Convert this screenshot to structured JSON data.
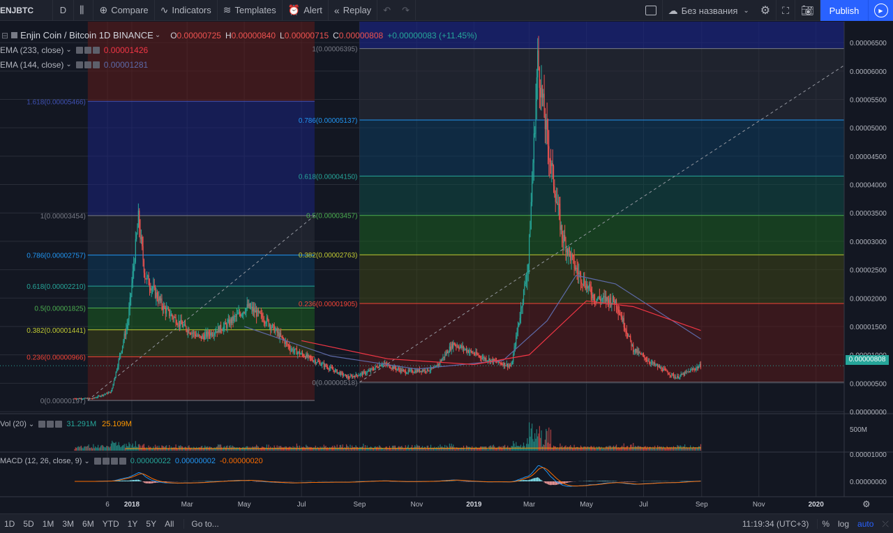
{
  "toolbar": {
    "symbol": "ENJBTC",
    "interval": "D",
    "compare": "Compare",
    "indicators": "Indicators",
    "templates": "Templates",
    "alert": "Alert",
    "replay": "Replay",
    "layout_name": "Без названия",
    "publish": "Publish"
  },
  "legend": {
    "title": "Enjin Coin / Bitcoin  1D  BINANCE",
    "o_label": "O",
    "o_value": "0.00000725",
    "h_label": "H",
    "h_value": "0.00000840",
    "l_label": "L",
    "l_value": "0.00000715",
    "c_label": "C",
    "c_value": "0.00000808",
    "change": "+0.00000083 (+11.45%)",
    "ema233_label": "EMA (233, close)",
    "ema233_value": "0.00001426",
    "ema144_label": "EMA (144, close)",
    "ema144_value": "0.00001281",
    "vol_label": "Vol (20)",
    "vol_value1": "31.291M",
    "vol_value2": "25.109M",
    "macd_label": "MACD (12, 26, close, 9)",
    "macd_value1": "0.00000022",
    "macd_value2": "0.00000002",
    "macd_value3": "-0.00000020"
  },
  "price_axis": {
    "ticks": [
      "0.00006500",
      "0.00006000",
      "0.00005500",
      "0.00005000",
      "0.00004500",
      "0.00004000",
      "0.00003500",
      "0.00003000",
      "0.00002500",
      "0.00002000",
      "0.00001500",
      "0.00001000",
      "0.00000500",
      "0.00000000"
    ],
    "last_price": "0.00000808",
    "vol_tick": "500M",
    "macd_ticks": [
      "0.00001000",
      "0.00000000"
    ]
  },
  "time_axis": {
    "labels": [
      "6",
      "2018",
      "Mar",
      "May",
      "Jul",
      "Sep",
      "Nov",
      "2019",
      "Mar",
      "May",
      "Jul",
      "Sep",
      "Nov",
      "2020"
    ]
  },
  "fib_left": {
    "levels": [
      {
        "label": "1.618(0.00005466)",
        "color": "#3f51b5"
      },
      {
        "label": "1(0.00003454)",
        "color": "#787b86"
      },
      {
        "label": "0.786(0.00002757)",
        "color": "#2196f3"
      },
      {
        "label": "0.618(0.00002210)",
        "color": "#26a69a"
      },
      {
        "label": "0.5(0.00001825)",
        "color": "#4caf50"
      },
      {
        "label": "0.382(0.00001441)",
        "color": "#c0ca33"
      },
      {
        "label": "0.236(0.00000966)",
        "color": "#f44336"
      },
      {
        "label": "0(0.00000197)",
        "color": "#787b86"
      }
    ]
  },
  "fib_right": {
    "levels": [
      {
        "label": "1(0.00006395)",
        "color": "#787b86"
      },
      {
        "label": "0.786(0.00005137)",
        "color": "#2196f3"
      },
      {
        "label": "0.618(0.00004150)",
        "color": "#26a69a"
      },
      {
        "label": "0.5(0.00003457)",
        "color": "#4caf50"
      },
      {
        "label": "0.382(0.00002763)",
        "color": "#c0ca33"
      },
      {
        "label": "0.236(0.00001905)",
        "color": "#f44336"
      },
      {
        "label": "0(0.00000518)",
        "color": "#787b86"
      }
    ]
  },
  "bottom": {
    "ranges": [
      "1D",
      "5D",
      "1M",
      "3M",
      "6M",
      "YTD",
      "1Y",
      "5Y",
      "All"
    ],
    "goto": "Go to...",
    "time": "11:19:34 (UTC+3)",
    "percent": "%",
    "log": "log",
    "auto": "auto"
  },
  "colors": {
    "up": "#26a69a",
    "down": "#ef5350",
    "ema233": "#f23645",
    "ema144": "#5d6aa8",
    "bg": "#131722",
    "grid": "#2a2e39",
    "axis_text": "#b2b5be"
  },
  "chart_data": {
    "type": "candlestick",
    "title": "Enjin Coin / Bitcoin  1D  BINANCE",
    "xlabel": "",
    "ylabel": "",
    "ylim": [
      0,
      6.6e-05
    ],
    "x_range": [
      "2017-11-01",
      "2020-01-31"
    ],
    "anchors": [
      [
        "2017-11-01",
        2.3e-06
      ],
      [
        "2017-11-20",
        2.3e-06
      ],
      [
        "2017-12-10",
        3.5e-06
      ],
      [
        "2017-12-28",
        1.6e-05
      ],
      [
        "2018-01-08",
        3.4e-05
      ],
      [
        "2018-01-15",
        2.4e-05
      ],
      [
        "2018-02-05",
        1.8e-05
      ],
      [
        "2018-02-25",
        1.5e-05
      ],
      [
        "2018-03-15",
        1.3e-05
      ],
      [
        "2018-04-10",
        1.5e-05
      ],
      [
        "2018-05-05",
        1.85e-05
      ],
      [
        "2018-05-25",
        1.6e-05
      ],
      [
        "2018-06-20",
        1.1e-05
      ],
      [
        "2018-07-15",
        9e-06
      ],
      [
        "2018-08-20",
        6e-06
      ],
      [
        "2018-09-10",
        7e-06
      ],
      [
        "2018-09-25",
        8.5e-06
      ],
      [
        "2018-10-20",
        7e-06
      ],
      [
        "2018-11-20",
        7.5e-06
      ],
      [
        "2018-12-10",
        1.2e-05
      ],
      [
        "2019-01-10",
        9.5e-06
      ],
      [
        "2019-02-10",
        8e-06
      ],
      [
        "2019-02-28",
        2.6e-05
      ],
      [
        "2019-03-10",
        6.2e-05
      ],
      [
        "2019-03-20",
        4.8e-05
      ],
      [
        "2019-04-05",
        3.1e-05
      ],
      [
        "2019-04-20",
        2.5e-05
      ],
      [
        "2019-05-10",
        2e-05
      ],
      [
        "2019-06-01",
        1.95e-05
      ],
      [
        "2019-06-20",
        1.1e-05
      ],
      [
        "2019-07-10",
        8.5e-06
      ],
      [
        "2019-08-05",
        6e-06
      ],
      [
        "2019-08-31",
        8.1e-06
      ]
    ],
    "ema233": [
      [
        "2018-07-01",
        1.25e-05
      ],
      [
        "2018-10-01",
        9.3e-06
      ],
      [
        "2019-01-01",
        8.3e-06
      ],
      [
        "2019-03-01",
        1e-05
      ],
      [
        "2019-05-01",
        1.95e-05
      ],
      [
        "2019-06-20",
        1.85e-05
      ],
      [
        "2019-08-31",
        1.43e-05
      ]
    ],
    "ema144": [
      [
        "2018-05-01",
        1.5e-05
      ],
      [
        "2018-08-01",
        9.8e-06
      ],
      [
        "2018-11-01",
        7.5e-06
      ],
      [
        "2019-02-01",
        9e-06
      ],
      [
        "2019-03-20",
        1.6e-05
      ],
      [
        "2019-04-20",
        2.4e-05
      ],
      [
        "2019-06-01",
        2.25e-05
      ],
      [
        "2019-08-31",
        1.28e-05
      ]
    ],
    "fib_left_range": [
      "2017-11-15",
      "2018-07-15"
    ],
    "fib_right_range": [
      "2018-09-01",
      "2020-02-28"
    ]
  }
}
